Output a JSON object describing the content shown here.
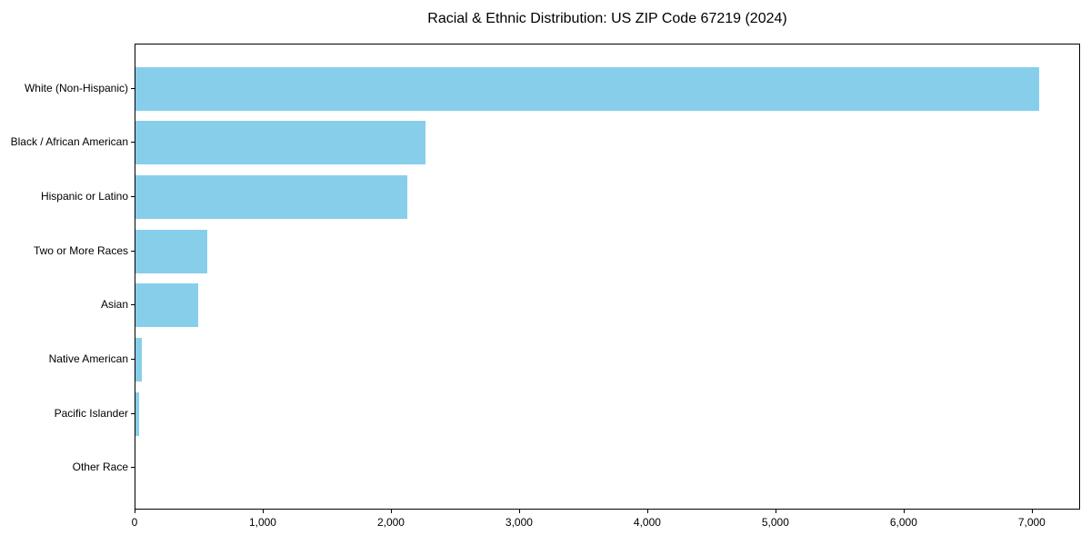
{
  "title": "Racial & Ethnic Distribution: US ZIP Code 67219 (2024)",
  "colors": {
    "bar": "#87CEEB",
    "axis": "#000000",
    "text": "#000000",
    "background": "#FFFFFF"
  },
  "chart_data": {
    "type": "bar",
    "orientation": "horizontal",
    "title": "Racial & Ethnic Distribution: US ZIP Code 67219 (2024)",
    "categories": [
      "White (Non-Hispanic)",
      "Black / African American",
      "Hispanic or Latino",
      "Two or More Races",
      "Asian",
      "Native American",
      "Pacific Islander",
      "Other Race"
    ],
    "values": [
      7050,
      2260,
      2120,
      560,
      490,
      50,
      28,
      0
    ],
    "xlabel": "",
    "ylabel": "",
    "xlim": [
      0,
      7370
    ],
    "x_ticks": [
      0,
      1000,
      2000,
      3000,
      4000,
      5000,
      6000,
      7000
    ],
    "x_tick_labels": [
      "0",
      "1,000",
      "2,000",
      "3,000",
      "4,000",
      "5,000",
      "6,000",
      "7,000"
    ],
    "bar_color": "#87CEEB",
    "grid": false,
    "legend": false
  }
}
